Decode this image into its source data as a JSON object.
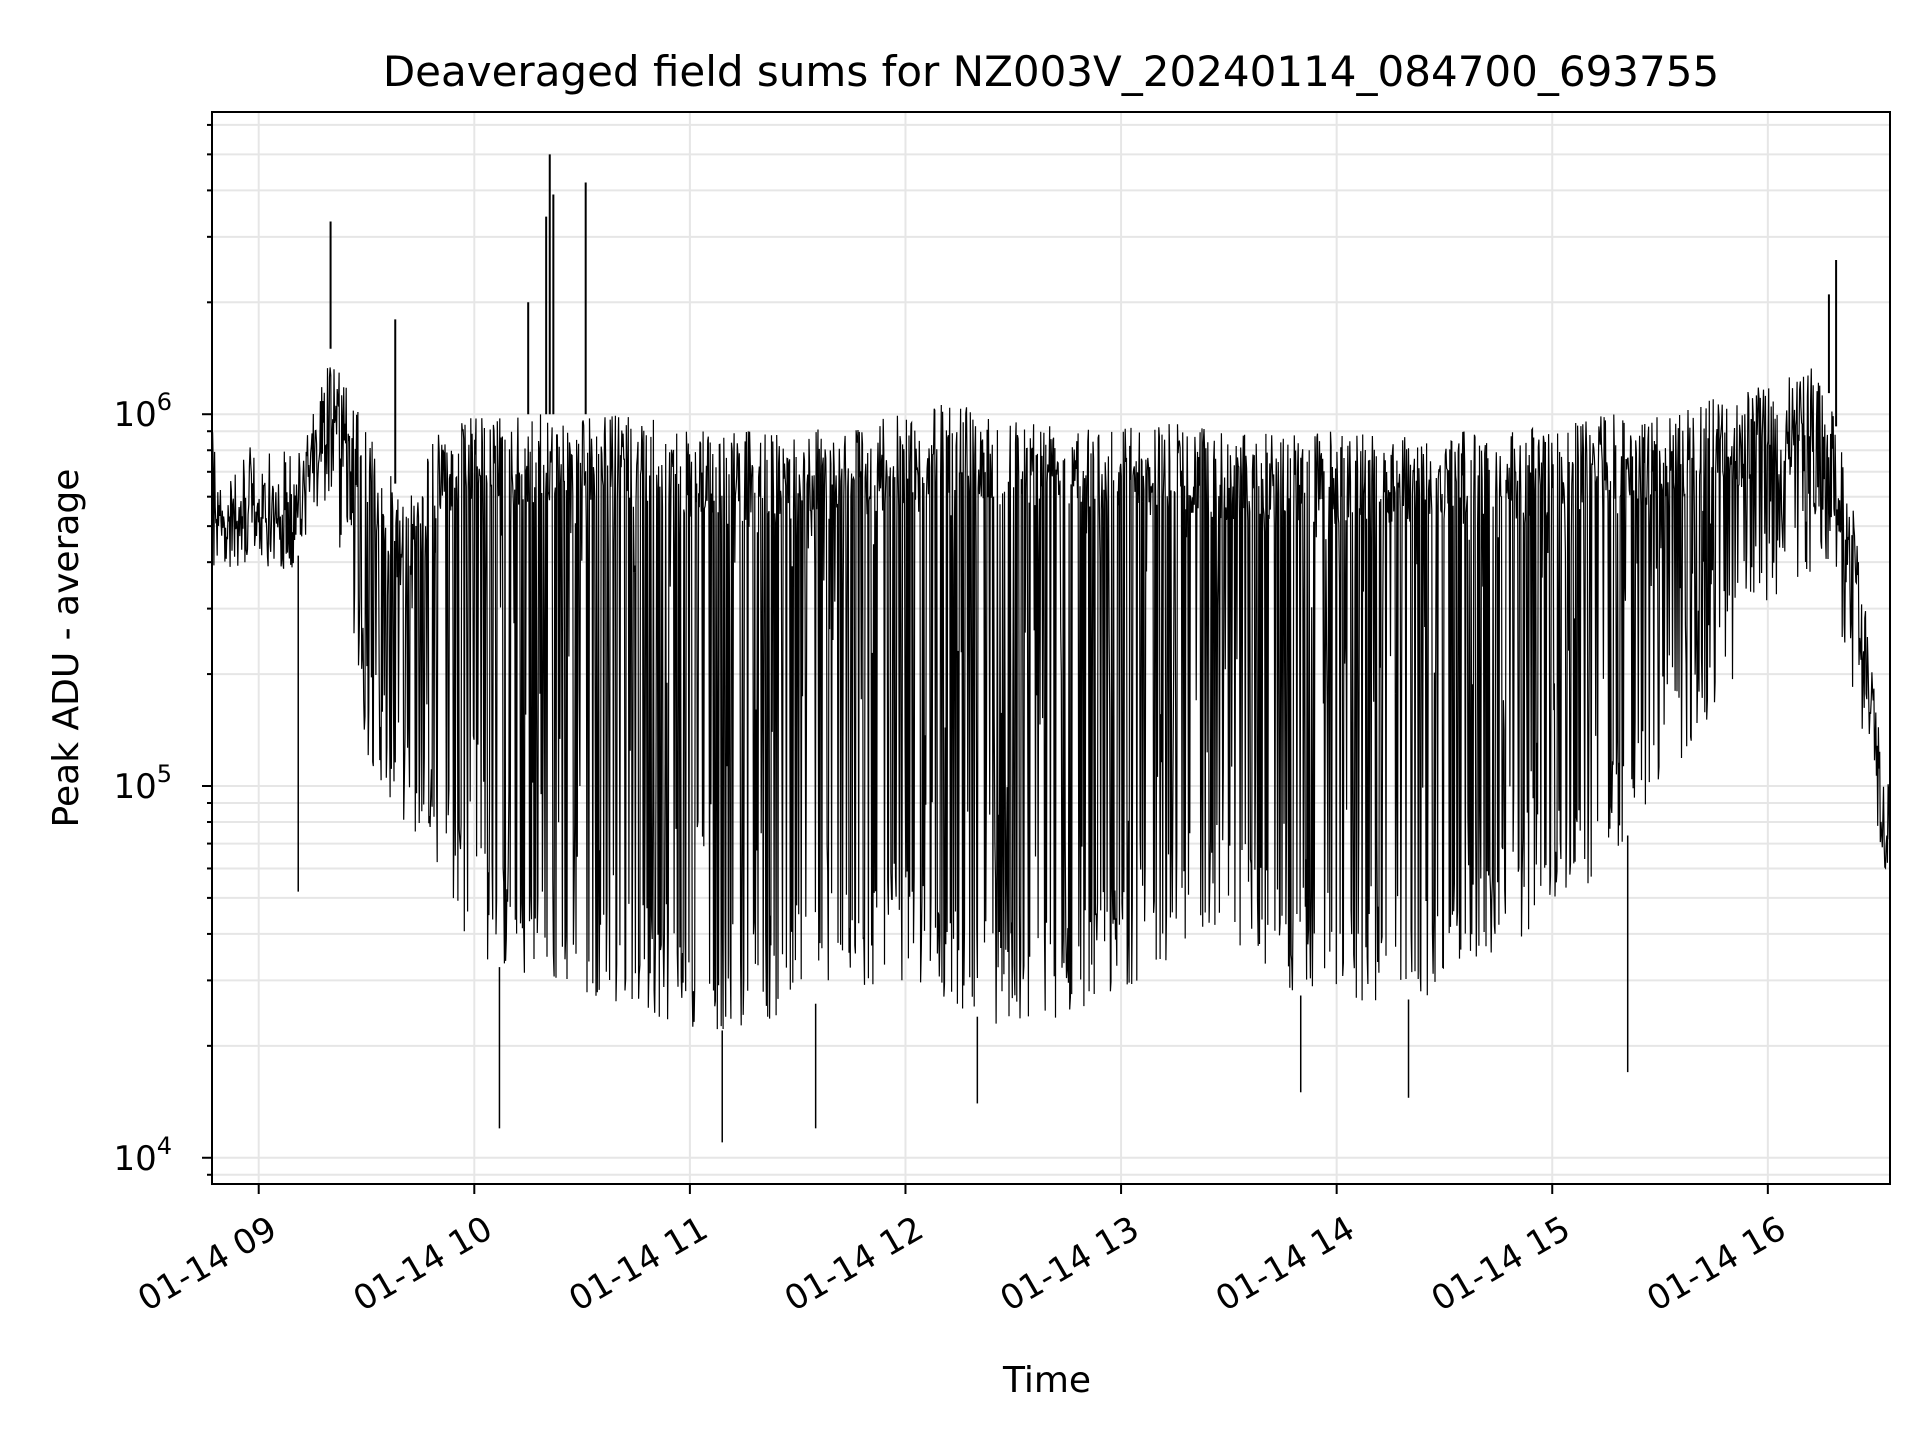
{
  "chart_data": {
    "type": "line",
    "title": "Deaveraged field sums for NZ003V_20240114_084700_693755",
    "xlabel": "Time",
    "ylabel": "Peak ADU - average",
    "yscale": "log",
    "grid": true,
    "xlim": [
      "2024-01-14T08:47",
      "2024-01-14T16:34"
    ],
    "ylim": [
      8500,
      6500000
    ],
    "xticks": [
      {
        "value": "2024-01-14T09:00",
        "label": "01-14 09"
      },
      {
        "value": "2024-01-14T10:00",
        "label": "01-14 10"
      },
      {
        "value": "2024-01-14T11:00",
        "label": "01-14 11"
      },
      {
        "value": "2024-01-14T12:00",
        "label": "01-14 12"
      },
      {
        "value": "2024-01-14T13:00",
        "label": "01-14 13"
      },
      {
        "value": "2024-01-14T14:00",
        "label": "01-14 14"
      },
      {
        "value": "2024-01-14T15:00",
        "label": "01-14 15"
      },
      {
        "value": "2024-01-14T16:00",
        "label": "01-14 16"
      }
    ],
    "yticks": [
      {
        "value": 10000,
        "base": "10",
        "exp": "4"
      },
      {
        "value": 100000,
        "base": "10",
        "exp": "5"
      },
      {
        "value": 1000000,
        "base": "10",
        "exp": "6"
      }
    ],
    "envelope": {
      "description_x": "time",
      "x": [
        "2024-01-14T08:47",
        "2024-01-14T09:00",
        "2024-01-14T09:10",
        "2024-01-14T09:20",
        "2024-01-14T09:30",
        "2024-01-14T09:40",
        "2024-01-14T09:50",
        "2024-01-14T10:00",
        "2024-01-14T10:15",
        "2024-01-14T10:30",
        "2024-01-14T10:45",
        "2024-01-14T11:00",
        "2024-01-14T11:15",
        "2024-01-14T11:30",
        "2024-01-14T11:45",
        "2024-01-14T12:00",
        "2024-01-14T12:15",
        "2024-01-14T12:30",
        "2024-01-14T12:45",
        "2024-01-14T13:00",
        "2024-01-14T13:15",
        "2024-01-14T13:30",
        "2024-01-14T13:45",
        "2024-01-14T14:00",
        "2024-01-14T14:15",
        "2024-01-14T14:30",
        "2024-01-14T14:45",
        "2024-01-14T15:00",
        "2024-01-14T15:15",
        "2024-01-14T15:30",
        "2024-01-14T15:45",
        "2024-01-14T16:00",
        "2024-01-14T16:15",
        "2024-01-14T16:25",
        "2024-01-14T16:34"
      ],
      "upper": [
        650000,
        700000,
        650000,
        1500000,
        900000,
        600000,
        900000,
        1000000,
        1000000,
        1000000,
        1000000,
        900000,
        900000,
        900000,
        950000,
        1000000,
        1100000,
        1000000,
        1000000,
        950000,
        950000,
        900000,
        900000,
        900000,
        900000,
        900000,
        900000,
        950000,
        1000000,
        1000000,
        1100000,
        1200000,
        1400000,
        500000,
        80000
      ],
      "lower": [
        450000,
        400000,
        400000,
        600000,
        120000,
        80000,
        60000,
        35000,
        30000,
        28000,
        25000,
        22000,
        22000,
        25000,
        28000,
        30000,
        25000,
        22000,
        24000,
        28000,
        35000,
        40000,
        28000,
        26000,
        26000,
        28000,
        35000,
        45000,
        60000,
        100000,
        150000,
        300000,
        400000,
        150000,
        50000
      ]
    },
    "spikes": [
      {
        "x": "2024-01-14T09:20",
        "y": 3300000
      },
      {
        "x": "2024-01-14T09:38",
        "y": 1800000
      },
      {
        "x": "2024-01-14T10:15",
        "y": 2000000
      },
      {
        "x": "2024-01-14T10:20",
        "y": 3400000
      },
      {
        "x": "2024-01-14T10:21",
        "y": 5000000
      },
      {
        "x": "2024-01-14T10:22",
        "y": 3900000
      },
      {
        "x": "2024-01-14T10:31",
        "y": 4200000
      },
      {
        "x": "2024-01-14T16:17",
        "y": 2100000
      },
      {
        "x": "2024-01-14T16:19",
        "y": 2600000
      }
    ],
    "dips": [
      {
        "x": "2024-01-14T09:11",
        "y": 52000
      },
      {
        "x": "2024-01-14T10:07",
        "y": 12000
      },
      {
        "x": "2024-01-14T11:09",
        "y": 11000
      },
      {
        "x": "2024-01-14T11:35",
        "y": 12000
      },
      {
        "x": "2024-01-14T12:20",
        "y": 14000
      },
      {
        "x": "2024-01-14T13:50",
        "y": 15000
      },
      {
        "x": "2024-01-14T14:20",
        "y": 14500
      },
      {
        "x": "2024-01-14T15:21",
        "y": 17000
      }
    ]
  }
}
